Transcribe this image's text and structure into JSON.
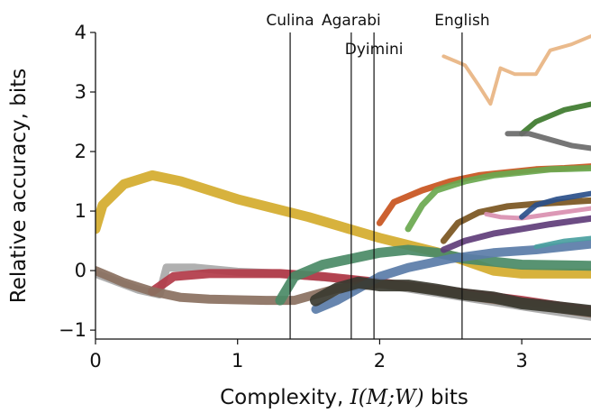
{
  "chart_data": {
    "type": "line",
    "xlabel_text": "Complexity, ",
    "xlabel_math": "I(M;W)",
    "xlabel_unit": " bits",
    "ylabel": "Relative accuracy, bits",
    "xlim": [
      0,
      3.5
    ],
    "ylim": [
      -1.15,
      4
    ],
    "xticks": [
      0,
      1,
      2,
      3
    ],
    "yticks": [
      -1,
      0,
      1,
      2,
      3,
      4
    ],
    "xtick_labels": [
      "0",
      "1",
      "2",
      "3"
    ],
    "ytick_labels": [
      "−1",
      "0",
      "1",
      "2",
      "3",
      "4"
    ],
    "grid": false,
    "vlines": [
      {
        "label": "Culina",
        "x": 1.37
      },
      {
        "label": "Agarabi",
        "x": 1.8
      },
      {
        "label": "Dyimini",
        "x": 1.96
      },
      {
        "label": "English",
        "x": 2.58
      }
    ],
    "series": [
      {
        "color": "#a9a9a9",
        "width": 9,
        "points": [
          [
            0,
            -0.05
          ],
          [
            0.3,
            -0.32
          ],
          [
            0.45,
            -0.4
          ],
          [
            0.5,
            0.05
          ],
          [
            0.7,
            0.05
          ],
          [
            1.0,
            -0.02
          ],
          [
            1.3,
            -0.05
          ],
          [
            1.8,
            -0.15
          ],
          [
            2.2,
            -0.3
          ],
          [
            2.6,
            -0.45
          ],
          [
            3.0,
            -0.6
          ],
          [
            3.5,
            -0.78
          ]
        ]
      },
      {
        "color": "#b23a48",
        "width": 10,
        "points": [
          [
            0.4,
            -0.35
          ],
          [
            0.55,
            -0.1
          ],
          [
            0.8,
            -0.05
          ],
          [
            1.3,
            -0.05
          ],
          [
            1.6,
            -0.1
          ],
          [
            2.0,
            -0.2
          ],
          [
            2.5,
            -0.35
          ],
          [
            3.0,
            -0.5
          ],
          [
            3.5,
            -0.68
          ]
        ]
      },
      {
        "color": "#d4ab2c",
        "width": 11,
        "points": [
          [
            0,
            0.7
          ],
          [
            0.05,
            1.1
          ],
          [
            0.2,
            1.45
          ],
          [
            0.4,
            1.6
          ],
          [
            0.6,
            1.5
          ],
          [
            1.0,
            1.2
          ],
          [
            1.5,
            0.9
          ],
          [
            2.0,
            0.55
          ],
          [
            2.5,
            0.25
          ],
          [
            2.8,
            0.0
          ],
          [
            3.0,
            -0.05
          ],
          [
            3.5,
            -0.05
          ]
        ]
      },
      {
        "color": "#8a7060",
        "width": 10,
        "points": [
          [
            0,
            0.0
          ],
          [
            0.2,
            -0.2
          ],
          [
            0.4,
            -0.35
          ],
          [
            0.6,
            -0.45
          ],
          [
            0.8,
            -0.48
          ],
          [
            1.2,
            -0.5
          ],
          [
            1.4,
            -0.5
          ],
          [
            1.7,
            -0.3
          ],
          [
            2.0,
            -0.22
          ],
          [
            2.3,
            -0.3
          ],
          [
            2.7,
            -0.45
          ],
          [
            3.0,
            -0.55
          ],
          [
            3.5,
            -0.72
          ]
        ]
      },
      {
        "color": "#4a8a66",
        "width": 11,
        "points": [
          [
            1.3,
            -0.5
          ],
          [
            1.4,
            -0.1
          ],
          [
            1.6,
            0.1
          ],
          [
            1.8,
            0.2
          ],
          [
            2.0,
            0.3
          ],
          [
            2.2,
            0.35
          ],
          [
            2.4,
            0.3
          ],
          [
            2.6,
            0.2
          ],
          [
            2.8,
            0.15
          ],
          [
            3.0,
            0.1
          ],
          [
            3.5,
            0.08
          ]
        ]
      },
      {
        "color": "#5a7ca8",
        "width": 10,
        "points": [
          [
            1.55,
            -0.65
          ],
          [
            1.7,
            -0.5
          ],
          [
            1.85,
            -0.3
          ],
          [
            2.0,
            -0.1
          ],
          [
            2.2,
            0.05
          ],
          [
            2.5,
            0.2
          ],
          [
            2.8,
            0.3
          ],
          [
            3.1,
            0.35
          ],
          [
            3.5,
            0.45
          ]
        ]
      },
      {
        "color": "#3a3a30",
        "width": 13,
        "points": [
          [
            1.55,
            -0.5
          ],
          [
            1.7,
            -0.3
          ],
          [
            1.85,
            -0.2
          ],
          [
            2.0,
            -0.25
          ],
          [
            2.2,
            -0.25
          ],
          [
            2.4,
            -0.32
          ],
          [
            2.6,
            -0.4
          ],
          [
            2.8,
            -0.45
          ],
          [
            3.0,
            -0.55
          ],
          [
            3.2,
            -0.6
          ],
          [
            3.5,
            -0.68
          ]
        ]
      },
      {
        "color": "#c8541e",
        "width": 7,
        "points": [
          [
            2.0,
            0.8
          ],
          [
            2.1,
            1.15
          ],
          [
            2.3,
            1.35
          ],
          [
            2.5,
            1.5
          ],
          [
            2.7,
            1.6
          ],
          [
            2.9,
            1.65
          ],
          [
            3.1,
            1.7
          ],
          [
            3.3,
            1.72
          ],
          [
            3.5,
            1.75
          ]
        ]
      },
      {
        "color": "#6aa84f",
        "width": 7,
        "points": [
          [
            2.2,
            0.7
          ],
          [
            2.3,
            1.1
          ],
          [
            2.4,
            1.35
          ],
          [
            2.6,
            1.5
          ],
          [
            2.8,
            1.6
          ],
          [
            3.0,
            1.65
          ],
          [
            3.2,
            1.7
          ],
          [
            3.5,
            1.72
          ]
        ]
      },
      {
        "color": "#7a5520",
        "width": 7,
        "points": [
          [
            2.45,
            0.5
          ],
          [
            2.55,
            0.8
          ],
          [
            2.7,
            0.98
          ],
          [
            2.9,
            1.08
          ],
          [
            3.1,
            1.12
          ],
          [
            3.3,
            1.15
          ],
          [
            3.5,
            1.18
          ]
        ]
      },
      {
        "color": "#603d7a",
        "width": 7,
        "points": [
          [
            2.45,
            0.35
          ],
          [
            2.6,
            0.5
          ],
          [
            2.8,
            0.62
          ],
          [
            3.0,
            0.7
          ],
          [
            3.2,
            0.78
          ],
          [
            3.5,
            0.88
          ]
        ]
      },
      {
        "color": "#d98fb0",
        "width": 5,
        "points": [
          [
            2.75,
            0.95
          ],
          [
            2.85,
            0.9
          ],
          [
            3.0,
            0.88
          ],
          [
            3.2,
            0.95
          ],
          [
            3.5,
            1.05
          ]
        ]
      },
      {
        "color": "#2a4f8a",
        "width": 6,
        "points": [
          [
            3.0,
            0.9
          ],
          [
            3.1,
            1.1
          ],
          [
            3.25,
            1.2
          ],
          [
            3.5,
            1.3
          ]
        ]
      },
      {
        "color": "#3d7a2c",
        "width": 6,
        "points": [
          [
            3.0,
            2.3
          ],
          [
            3.1,
            2.5
          ],
          [
            3.3,
            2.7
          ],
          [
            3.5,
            2.8
          ]
        ]
      },
      {
        "color": "#6a6a6a",
        "width": 6,
        "points": [
          [
            2.9,
            2.3
          ],
          [
            3.05,
            2.3
          ],
          [
            3.2,
            2.2
          ],
          [
            3.35,
            2.1
          ],
          [
            3.5,
            2.05
          ]
        ]
      },
      {
        "color": "#4aa0a0",
        "width": 5,
        "points": [
          [
            3.1,
            0.4
          ],
          [
            3.3,
            0.5
          ],
          [
            3.5,
            0.55
          ]
        ]
      },
      {
        "color": "#e8b482",
        "width": 4,
        "points": [
          [
            2.45,
            3.6
          ],
          [
            2.6,
            3.45
          ],
          [
            2.7,
            3.1
          ],
          [
            2.78,
            2.8
          ],
          [
            2.85,
            3.4
          ],
          [
            2.95,
            3.3
          ],
          [
            3.1,
            3.3
          ],
          [
            3.2,
            3.7
          ],
          [
            3.35,
            3.8
          ],
          [
            3.5,
            3.95
          ]
        ]
      }
    ]
  }
}
